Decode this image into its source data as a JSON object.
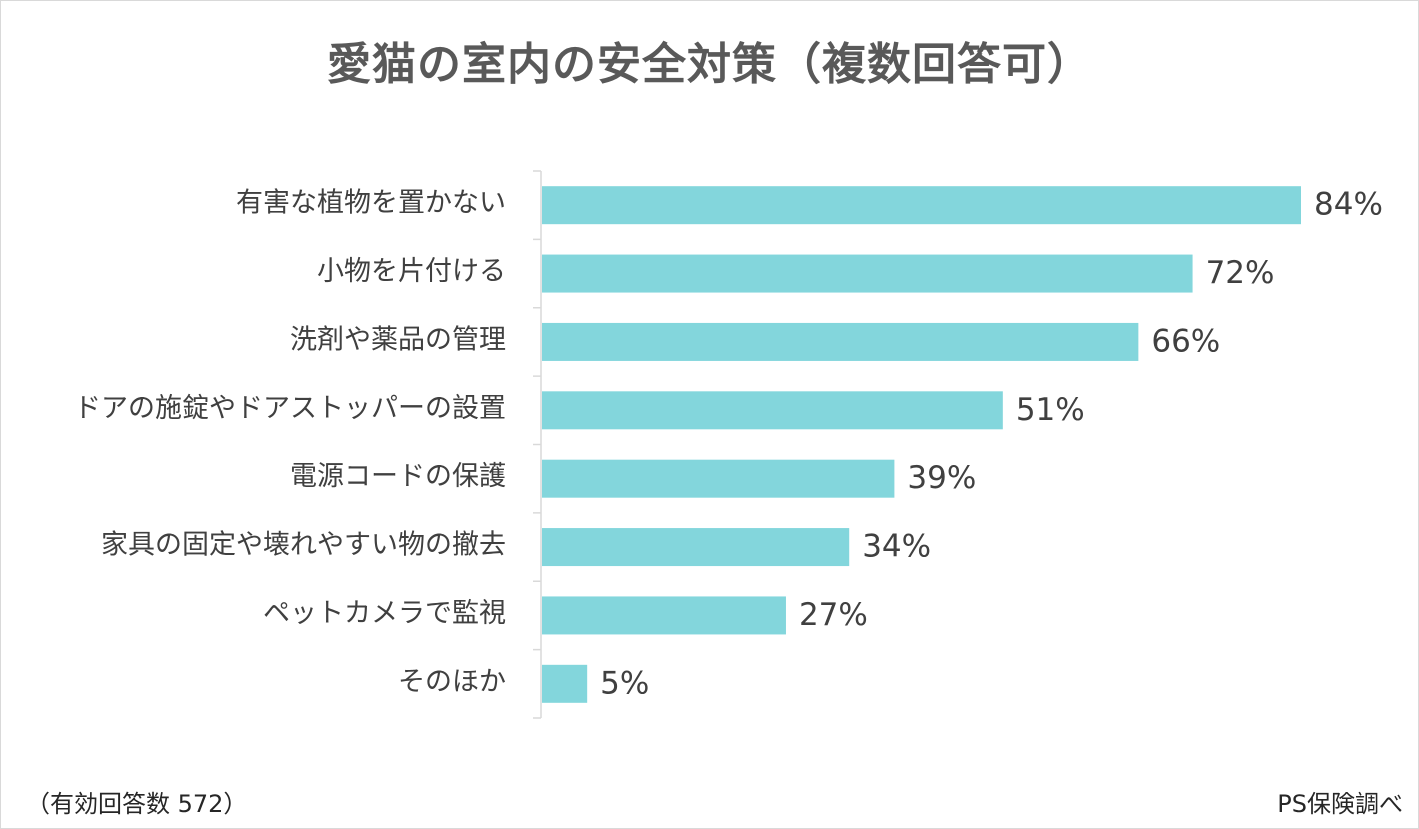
{
  "title": "愛猫の室内の安全対策（複数回答可）",
  "footnote_left": "（有効回答数 572）",
  "footnote_right": "PS保険調べ",
  "chart_data": {
    "type": "bar",
    "orientation": "horizontal",
    "title": "愛猫の室内の安全対策（複数回答可）",
    "categories": [
      "有害な植物を置かない",
      "小物を片付ける",
      "洗剤や薬品の管理",
      "ドアの施錠やドアストッパーの設置",
      "電源コードの保護",
      "家具の固定や壊れやすい物の撤去",
      "ペットカメラで監視",
      "そのほか"
    ],
    "values": [
      84,
      72,
      66,
      51,
      39,
      34,
      27,
      5
    ],
    "value_labels": [
      "84%",
      "72%",
      "66%",
      "51%",
      "39%",
      "34%",
      "27%",
      "5%"
    ],
    "unit": "%",
    "xlim": [
      0,
      84
    ],
    "bar_color": "#83d6dc",
    "grid": false,
    "legend": "none"
  }
}
